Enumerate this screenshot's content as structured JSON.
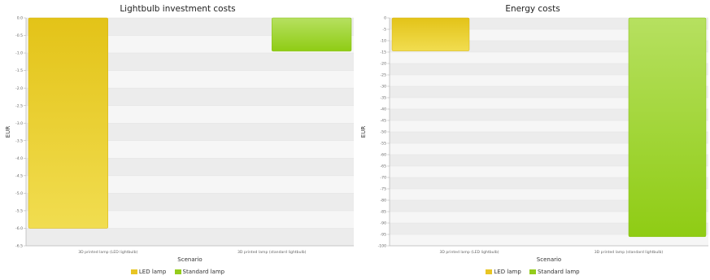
{
  "colors": {
    "led": "#e3c318",
    "led_light": "#f1dd50",
    "standard": "#8fcc14",
    "standard_light": "#b6e060",
    "band_dark": "#ececec",
    "band_light": "#f6f6f6"
  },
  "legend": [
    {
      "label": "LED lamp",
      "color": "#e8c524"
    },
    {
      "label": "Standard lamp",
      "color": "#94cc1c"
    }
  ],
  "chart_data": [
    {
      "type": "bar",
      "title": "Lightbulb investment costs",
      "xlabel": "Scenario",
      "ylabel": "EUR",
      "ylim": [
        -6.5,
        0
      ],
      "y_ticks": [
        "0.0",
        "-0.5",
        "-1.0",
        "-1.5",
        "-2.0",
        "-2.5",
        "-3.0",
        "-3.5",
        "-4.0",
        "-4.5",
        "-5.0",
        "-5.5",
        "-6.0",
        "-6.5"
      ],
      "categories": [
        "3D printed lamp (LED lightbulb)",
        "3D printed lamp (standard lightbulb)"
      ],
      "series": [
        {
          "name": "LED lamp",
          "values": [
            -6.0,
            0
          ]
        },
        {
          "name": "Standard lamp",
          "values": [
            0,
            -0.95
          ]
        }
      ]
    },
    {
      "type": "bar",
      "title": "Energy costs",
      "xlabel": "Scenario",
      "ylabel": "EUR",
      "ylim": [
        -100,
        0
      ],
      "y_ticks": [
        "0",
        "-5",
        "-10",
        "-15",
        "-20",
        "-25",
        "-30",
        "-35",
        "-40",
        "-45",
        "-50",
        "-55",
        "-60",
        "-65",
        "-70",
        "-75",
        "-80",
        "-85",
        "-90",
        "-95",
        "-100"
      ],
      "categories": [
        "3D printed lamp (LED lightbulb)",
        "3D printed lamp (standard lightbulb)"
      ],
      "series": [
        {
          "name": "LED lamp",
          "values": [
            -14.5,
            0
          ]
        },
        {
          "name": "Standard lamp",
          "values": [
            0,
            -96
          ]
        }
      ]
    }
  ]
}
